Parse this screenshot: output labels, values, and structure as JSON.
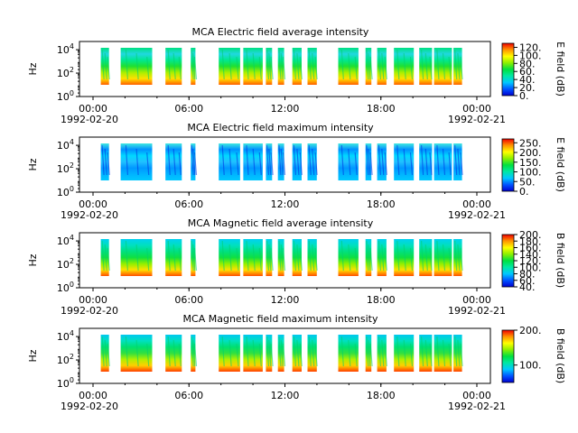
{
  "chart_data": [
    {
      "type": "heatmap",
      "title": "MCA  Electric field average intensity",
      "ylabel": "Hz",
      "y_scale": "log",
      "y_ticks": [
        {
          "exp": "0",
          "value": 1
        },
        {
          "exp": "2",
          "value": 100
        },
        {
          "exp": "4",
          "value": 10000
        }
      ],
      "x_ticks": [
        "00:00",
        "06:00",
        "12:00",
        "18:00",
        "00:00"
      ],
      "x_tick_hours": [
        0,
        6,
        12,
        18,
        24
      ],
      "x_start_date": "1992-02-20",
      "x_end_date": "1992-02-21",
      "colorbar": {
        "label": "E field (dB)",
        "range": [
          0,
          130
        ],
        "ticks": [
          "0.",
          "20.",
          "40.",
          "60.",
          "80.",
          "100.",
          "120."
        ],
        "tick_values": [
          0,
          20,
          40,
          60,
          80,
          100,
          120
        ]
      }
    },
    {
      "type": "heatmap",
      "title": "MCA  Electric field maximum intensity",
      "ylabel": "Hz",
      "y_scale": "log",
      "y_ticks": [
        {
          "exp": "0",
          "value": 1
        },
        {
          "exp": "2",
          "value": 100
        },
        {
          "exp": "4",
          "value": 10000
        }
      ],
      "x_ticks": [
        "00:00",
        "06:00",
        "12:00",
        "18:00",
        "00:00"
      ],
      "x_tick_hours": [
        0,
        6,
        12,
        18,
        24
      ],
      "x_start_date": "1992-02-20",
      "x_end_date": "1992-02-21",
      "colorbar": {
        "label": "E field (dB)",
        "range": [
          0,
          270
        ],
        "ticks": [
          "0.",
          "50.",
          "100.",
          "150.",
          "200.",
          "250."
        ],
        "tick_values": [
          0,
          50,
          100,
          150,
          200,
          250
        ]
      }
    },
    {
      "type": "heatmap",
      "title": "MCA  Magnetic field average intensity",
      "ylabel": "Hz",
      "y_scale": "log",
      "y_ticks": [
        {
          "exp": "0",
          "value": 1
        },
        {
          "exp": "2",
          "value": 100
        },
        {
          "exp": "4",
          "value": 10000
        }
      ],
      "x_ticks": [
        "00:00",
        "06:00",
        "12:00",
        "18:00",
        "00:00"
      ],
      "x_tick_hours": [
        0,
        6,
        12,
        18,
        24
      ],
      "x_start_date": "1992-02-20",
      "x_end_date": "1992-02-21",
      "colorbar": {
        "label": "B field (dB)",
        "range": [
          40,
          200
        ],
        "ticks": [
          "40.",
          "60.",
          "80.",
          "100.",
          "120.",
          "140.",
          "160.",
          "180.",
          "200."
        ],
        "tick_values": [
          40,
          60,
          80,
          100,
          120,
          140,
          160,
          180,
          200
        ]
      }
    },
    {
      "type": "heatmap",
      "title": "MCA  Magnetic field maximum intensity",
      "ylabel": "Hz",
      "y_scale": "log",
      "y_ticks": [
        {
          "exp": "0",
          "value": 1
        },
        {
          "exp": "2",
          "value": 100
        },
        {
          "exp": "4",
          "value": 10000
        }
      ],
      "x_ticks": [
        "00:00",
        "06:00",
        "12:00",
        "18:00",
        "00:00"
      ],
      "x_tick_hours": [
        0,
        6,
        12,
        18,
        24
      ],
      "x_start_date": "1992-02-20",
      "x_end_date": "1992-02-21",
      "colorbar": {
        "label": "B field (dB)",
        "range": [
          50,
          200
        ],
        "ticks": [
          "100.",
          "200."
        ],
        "tick_values": [
          100,
          200
        ]
      }
    }
  ]
}
